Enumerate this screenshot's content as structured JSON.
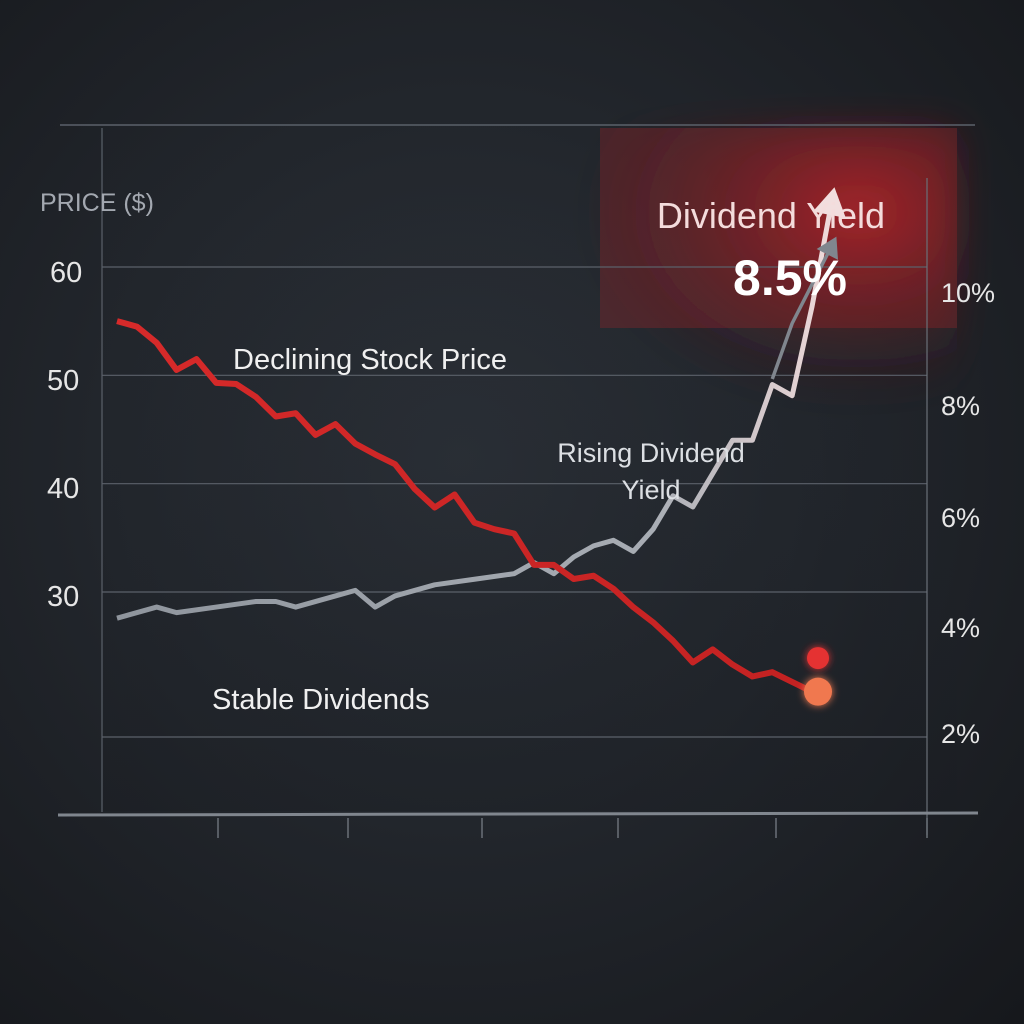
{
  "chart_data": {
    "type": "line",
    "y_left_label": "PRICE ($)",
    "y_left_ticks": [
      60,
      50,
      40,
      30
    ],
    "y_left_ticklabels": [
      "60",
      "50",
      "40",
      "30"
    ],
    "y_left_range": [
      14,
      68
    ],
    "y_right_ticks": [
      10,
      8,
      6,
      4,
      2
    ],
    "y_right_ticklabels": [
      "10%",
      "8%",
      "6%",
      "4%",
      "2%"
    ],
    "y_right_range": [
      0.6,
      12.4
    ],
    "x_index_range": [
      0,
      40
    ],
    "grid": true,
    "callout": {
      "title": "Dividend Yield",
      "value": "8.5%"
    },
    "annotations": {
      "declining": "Declining Stock Price",
      "rising_line1": "Rising Dividend",
      "rising_line2": "Yield",
      "stable": "Stable Dividends"
    },
    "series": [
      {
        "key": "price",
        "axis": "left",
        "color": "#d42a2a",
        "values": [
          [
            0,
            55
          ],
          [
            1,
            54.5
          ],
          [
            2,
            53
          ],
          [
            3,
            50.5
          ],
          [
            4,
            51.5
          ],
          [
            5,
            49.3
          ],
          [
            6,
            49.2
          ],
          [
            7,
            48
          ],
          [
            8,
            46.2
          ],
          [
            9,
            46.5
          ],
          [
            10,
            44.5
          ],
          [
            11,
            45.5
          ],
          [
            12,
            43.7
          ],
          [
            13,
            42.7
          ],
          [
            14,
            41.8
          ],
          [
            15,
            39.5
          ],
          [
            16,
            37.8
          ],
          [
            17,
            39
          ],
          [
            18,
            36.4
          ],
          [
            19,
            35.8
          ],
          [
            20,
            35.4
          ],
          [
            21,
            32.5
          ],
          [
            22,
            32.5
          ],
          [
            23,
            31.2
          ],
          [
            24,
            31.5
          ],
          [
            25,
            30.3
          ],
          [
            26,
            28.6
          ],
          [
            27,
            27.2
          ],
          [
            28,
            25.5
          ],
          [
            29,
            23.5
          ],
          [
            30,
            24.7
          ],
          [
            31,
            23.3
          ],
          [
            32,
            22.2
          ],
          [
            33,
            22.6
          ],
          [
            34,
            21.7
          ],
          [
            35,
            20.8
          ]
        ]
      },
      {
        "key": "yield",
        "axis": "right",
        "color": "#9aa0a8",
        "values": [
          [
            0,
            4.1
          ],
          [
            2,
            4.3
          ],
          [
            3,
            4.2
          ],
          [
            5,
            4.3
          ],
          [
            7,
            4.4
          ],
          [
            8,
            4.4
          ],
          [
            9,
            4.3
          ],
          [
            11,
            4.5
          ],
          [
            12,
            4.6
          ],
          [
            13,
            4.3
          ],
          [
            14,
            4.5
          ],
          [
            16,
            4.7
          ],
          [
            18,
            4.8
          ],
          [
            20,
            4.9
          ],
          [
            21,
            5.1
          ],
          [
            22,
            4.9
          ],
          [
            23,
            5.2
          ],
          [
            24,
            5.4
          ],
          [
            25,
            5.5
          ],
          [
            26,
            5.3
          ],
          [
            27,
            5.7
          ],
          [
            28,
            6.3
          ],
          [
            29,
            6.1
          ],
          [
            30,
            6.7
          ],
          [
            31,
            7.3
          ],
          [
            32,
            7.3
          ],
          [
            33,
            8.3
          ],
          [
            34,
            8.1
          ],
          [
            35,
            9.7
          ],
          [
            36,
            11.6
          ]
        ]
      },
      {
        "key": "yield_secondary",
        "axis": "right",
        "color": "#7c8188",
        "values": [
          [
            33,
            8.4
          ],
          [
            34,
            9.4
          ],
          [
            35,
            10.1
          ],
          [
            36,
            10.8
          ]
        ]
      },
      {
        "key": "dividend",
        "axis": "left",
        "color": "#e4e4e4",
        "values": [
          [
            0,
            23.9
          ],
          [
            35,
            23.9
          ]
        ]
      }
    ],
    "markers": [
      {
        "series": "dividend",
        "x": 35,
        "y": 23.9,
        "color": "#e53232"
      },
      {
        "series": "price",
        "x": 35,
        "y": 20.8,
        "color": "#f07850"
      }
    ]
  }
}
